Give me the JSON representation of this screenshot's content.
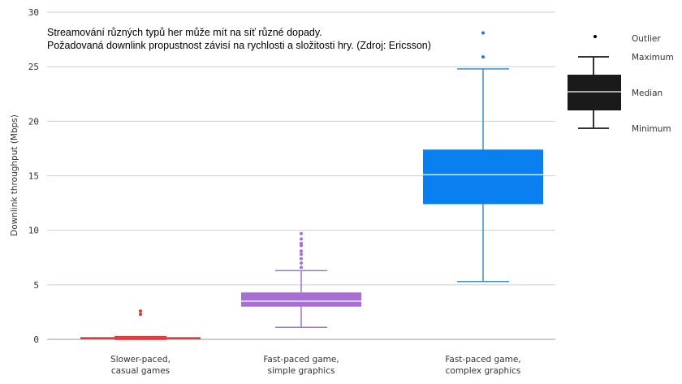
{
  "annotation": {
    "line1": "Streamování různých typů her může mít na síť různé dopady.",
    "line2": "Požadovaná downlink propustnost závisí na rychlosti a složitosti hry. (Zdroj: Ericsson)"
  },
  "chart_data": {
    "type": "box",
    "title": "",
    "xlabel": "",
    "ylabel": "Downlink throughput (Mbps)",
    "ylim": [
      0,
      30
    ],
    "yticks": [
      0,
      5,
      10,
      15,
      20,
      25,
      30
    ],
    "grid": true,
    "legend_position": "top-right",
    "legend": {
      "outlier": "Outlier",
      "maximum": "Maximum",
      "median": "Median",
      "minimum": "Minimum"
    },
    "boxes": [
      {
        "category": [
          "Slower-paced,",
          "casual games"
        ],
        "color": "#d93a3a",
        "min": 0.0,
        "q1": 0.05,
        "median": 0.1,
        "q3": 0.2,
        "max": 0.25,
        "outliers": [
          2.3,
          2.6
        ]
      },
      {
        "category": [
          "Fast-paced game,",
          "simple graphics"
        ],
        "color": "#a66fd1",
        "min": 1.1,
        "q1": 3.0,
        "median": 3.5,
        "q3": 4.3,
        "max": 6.3,
        "outliers": [
          6.6,
          7.0,
          7.4,
          7.8,
          8.1,
          8.6,
          8.8,
          9.2,
          9.7
        ]
      },
      {
        "category": [
          "Fast-paced game,",
          "complex graphics"
        ],
        "color": "#0a7ff0",
        "whisker_color": "#3a8fc4",
        "min": 5.3,
        "q1": 12.4,
        "median": 15.1,
        "q3": 17.4,
        "max": 24.8,
        "outliers": [
          25.9,
          28.1
        ]
      }
    ]
  }
}
